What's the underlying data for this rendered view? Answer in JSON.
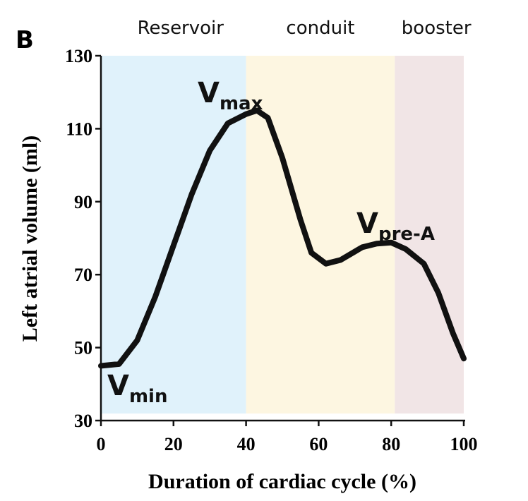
{
  "chart_data": {
    "type": "line",
    "panel_label": "B",
    "x_label": "Duration of cardiac cycle (%)",
    "y_label": "Left atrial volume (ml)",
    "xlim": [
      0,
      100
    ],
    "xticks": [
      0,
      20,
      40,
      60,
      80,
      100
    ],
    "ylim": [
      30,
      130
    ],
    "yticks": [
      30,
      50,
      70,
      90,
      110,
      130
    ],
    "phases": [
      {
        "name": "Reservoir",
        "start": 0,
        "end": 40,
        "color": "#e0f2fb"
      },
      {
        "name": "conduit",
        "start": 40,
        "end": 81,
        "color": "#fdf6e1"
      },
      {
        "name": "booster",
        "start": 81,
        "end": 100,
        "color": "#f1e5e6"
      }
    ],
    "x": [
      0,
      5,
      10,
      15,
      20,
      25,
      30,
      35,
      40,
      43,
      46,
      50,
      55,
      58,
      62,
      66,
      72,
      76,
      80,
      84,
      89,
      93,
      97,
      100
    ],
    "series": [
      {
        "color": "#111111",
        "values": [
          45,
          45.5,
          52,
          64,
          78,
          92,
          104,
          111.5,
          114,
          115,
          113,
          102,
          85,
          76,
          73,
          74,
          77.5,
          78.5,
          78.8,
          77,
          73,
          65,
          54,
          47
        ]
      }
    ],
    "annotations": [
      {
        "text": "V",
        "subscript": "max"
      },
      {
        "text": "V",
        "subscript": "pre-A"
      },
      {
        "text": "V",
        "subscript": "min"
      }
    ]
  }
}
